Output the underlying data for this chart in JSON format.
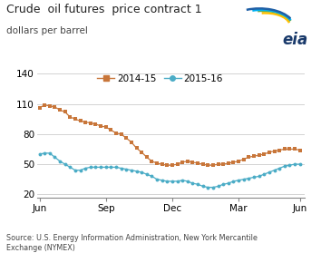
{
  "title": "Crude  oil futures  price contract 1",
  "subtitle": "dollars per barrel",
  "source": "Source: U.S. Energy Information Administration, New York Mercantile\nExchange (NYMEX)",
  "series_2014": {
    "label": "2014-15",
    "color": "#C8763A",
    "marker": "s",
    "x": [
      0,
      1,
      2,
      3,
      4,
      5,
      6,
      7,
      8,
      9,
      10,
      11,
      12,
      13,
      14,
      15,
      16,
      17,
      18,
      19,
      20,
      21,
      22,
      23,
      24,
      25,
      26,
      27,
      28,
      29,
      30,
      31,
      32,
      33,
      34,
      35,
      36,
      37,
      38,
      39,
      40,
      41,
      42,
      43,
      44,
      45,
      46,
      47,
      48,
      49,
      50,
      51
    ],
    "y": [
      106,
      109,
      108,
      107,
      104,
      102,
      97,
      95,
      93,
      92,
      91,
      90,
      88,
      87,
      84,
      81,
      80,
      76,
      72,
      66,
      62,
      57,
      53,
      51,
      50,
      49,
      49,
      50,
      52,
      53,
      52,
      51,
      50,
      49,
      49,
      50,
      50,
      51,
      52,
      53,
      55,
      57,
      58,
      59,
      60,
      62,
      63,
      64,
      65,
      65,
      65,
      64
    ]
  },
  "series_2015": {
    "label": "2015-16",
    "color": "#4BACC6",
    "marker": "o",
    "x": [
      0,
      1,
      2,
      3,
      4,
      5,
      6,
      7,
      8,
      9,
      10,
      11,
      12,
      13,
      14,
      15,
      16,
      17,
      18,
      19,
      20,
      21,
      22,
      23,
      24,
      25,
      26,
      27,
      28,
      29,
      30,
      31,
      32,
      33,
      34,
      35,
      36,
      37,
      38,
      39,
      40,
      41,
      42,
      43,
      44,
      45,
      46,
      47,
      48,
      49,
      50,
      51
    ],
    "y": [
      60,
      61,
      61,
      57,
      53,
      50,
      47,
      44,
      44,
      46,
      47,
      47,
      47,
      47,
      47,
      47,
      46,
      45,
      44,
      43,
      42,
      40,
      38,
      35,
      34,
      33,
      33,
      33,
      34,
      33,
      31,
      30,
      28,
      27,
      27,
      28,
      30,
      31,
      33,
      34,
      35,
      36,
      37,
      38,
      40,
      42,
      44,
      46,
      48,
      49,
      50,
      50
    ]
  },
  "xticks": [
    0,
    13,
    26,
    39,
    51
  ],
  "xticklabels": [
    "Jun",
    "Sep",
    "Dec",
    "Mar",
    "Jun"
  ],
  "yticks": [
    20,
    50,
    80,
    110,
    140
  ],
  "ylim": [
    17,
    148
  ],
  "xlim": [
    -0.5,
    52
  ],
  "grid_color": "#CCCCCC",
  "bg_color": "#FFFFFF",
  "logo_arc_colors": [
    "#FFC000",
    "#70AD47",
    "#00B0F0",
    "#0070C0"
  ],
  "logo_arc_angles": [
    [
      30,
      160,
      0.55,
      0.22,
      0.0
    ],
    [
      25,
      155,
      0.62,
      0.26,
      0.0
    ],
    [
      20,
      150,
      0.72,
      0.3,
      0.0
    ],
    [
      15,
      145,
      0.82,
      0.34,
      0.0
    ]
  ]
}
